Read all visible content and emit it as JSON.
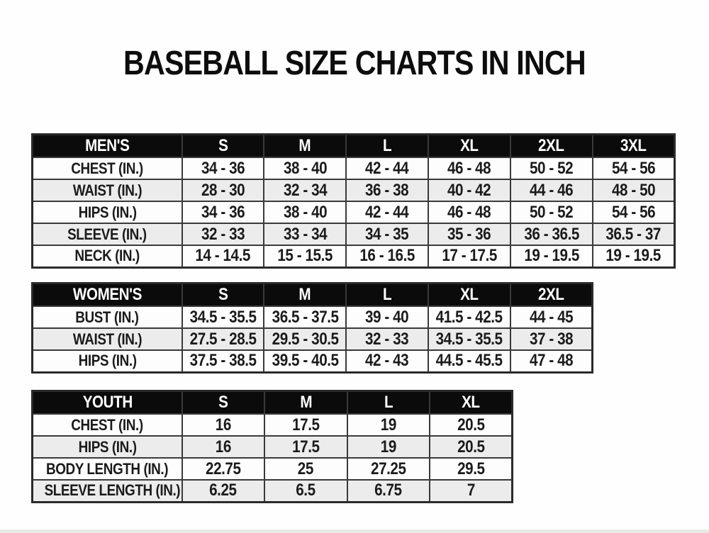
{
  "title": "BASEBALL SIZE CHARTS IN INCH",
  "colors": {
    "page_bg": "#fefefe",
    "header_bg": "#0b0b0b",
    "header_text": "#ffffff",
    "row_bg": "#fdfdfd",
    "row_alt_bg": "#ececec",
    "border": "#3a3a3a",
    "text": "#1b1b1b"
  },
  "chart_data": [
    {
      "type": "table",
      "title": "MEN'S",
      "columns": [
        "MEN'S",
        "S",
        "M",
        "L",
        "XL",
        "2XL",
        "3XL"
      ],
      "rows": [
        [
          "CHEST (IN.)",
          "34 - 36",
          "38 - 40",
          "42 - 44",
          "46 - 48",
          "50 - 52",
          "54 - 56"
        ],
        [
          "WAIST (IN.)",
          "28 - 30",
          "32 - 34",
          "36 - 38",
          "40 - 42",
          "44 - 46",
          "48 - 50"
        ],
        [
          "HIPS (IN.)",
          "34 - 36",
          "38 - 40",
          "42 - 44",
          "46 - 48",
          "50 - 52",
          "54 - 56"
        ],
        [
          "SLEEVE (IN.)",
          "32 - 33",
          "33 - 34",
          "34 - 35",
          "35 - 36",
          "36 - 36.5",
          "36.5 - 37"
        ],
        [
          "NECK (IN.)",
          "14 - 14.5",
          "15 - 15.5",
          "16 - 16.5",
          "17 - 17.5",
          "19 - 19.5",
          "19 - 19.5"
        ]
      ]
    },
    {
      "type": "table",
      "title": "WOMEN'S",
      "columns": [
        "WOMEN'S",
        "S",
        "M",
        "L",
        "XL",
        "2XL"
      ],
      "rows": [
        [
          "BUST (IN.)",
          "34.5 - 35.5",
          "36.5 - 37.5",
          "39 - 40",
          "41.5 - 42.5",
          "44 - 45"
        ],
        [
          "WAIST (IN.)",
          "27.5 - 28.5",
          "29.5 - 30.5",
          "32 - 33",
          "34.5 - 35.5",
          "37 - 38"
        ],
        [
          "HIPS (IN.)",
          "37.5 - 38.5",
          "39.5 - 40.5",
          "42 - 43",
          "44.5 - 45.5",
          "47 - 48"
        ]
      ]
    },
    {
      "type": "table",
      "title": "YOUTH",
      "columns": [
        "YOUTH",
        "S",
        "M",
        "L",
        "XL"
      ],
      "rows": [
        [
          "CHEST (IN.)",
          "16",
          "17.5",
          "19",
          "20.5"
        ],
        [
          "HIPS (IN.)",
          "16",
          "17.5",
          "19",
          "20.5"
        ],
        [
          "BODY LENGTH (IN.)",
          "22.75",
          "25",
          "27.25",
          "29.5"
        ],
        [
          "SLEEVE LENGTH (IN.)",
          "6.25",
          "6.5",
          "6.75",
          "7"
        ]
      ]
    }
  ]
}
